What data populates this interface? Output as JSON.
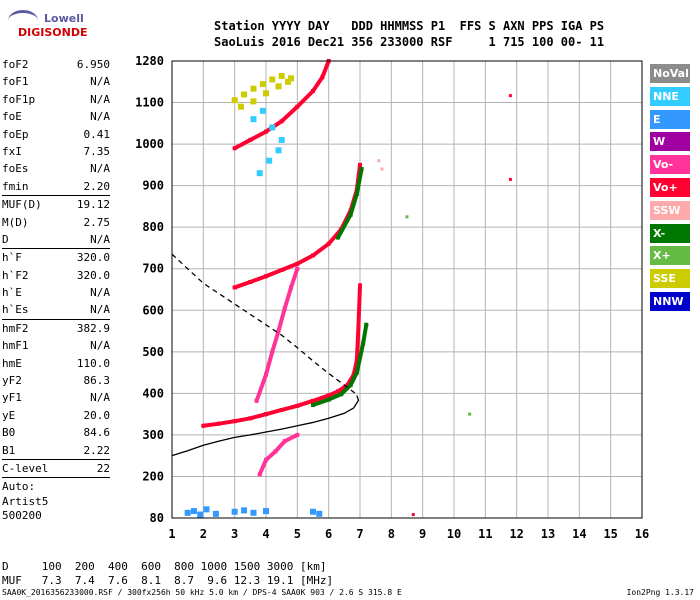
{
  "logo": {
    "line1": "Lowell",
    "line2": "DIGISONDE"
  },
  "header": {
    "line1": "Station YYYY DAY   DDD HHMMSS P1  FFS S AXN PPS IGA PS",
    "line2": "SaoLuis 2016 Dec21 356 233000 RSF     1 715 100 00- 11"
  },
  "params": [
    {
      "label": "foF2",
      "value": "6.950"
    },
    {
      "label": "foF1",
      "value": "N/A"
    },
    {
      "label": "foF1p",
      "value": "N/A"
    },
    {
      "label": "foE",
      "value": "N/A"
    },
    {
      "label": "foEp",
      "value": "0.41"
    },
    {
      "label": "fxI",
      "value": "7.35"
    },
    {
      "label": "foEs",
      "value": "N/A"
    },
    {
      "label": "fmin",
      "value": "2.20"
    },
    {
      "sep": true
    },
    {
      "label": "MUF(D)",
      "value": "19.12"
    },
    {
      "label": "M(D)",
      "value": "2.75"
    },
    {
      "label": "D",
      "value": "N/A"
    },
    {
      "sep": true
    },
    {
      "label": "h`F",
      "value": "320.0"
    },
    {
      "label": "h`F2",
      "value": "320.0"
    },
    {
      "label": "h`E",
      "value": "N/A"
    },
    {
      "label": "h`Es",
      "value": "N/A"
    },
    {
      "sep": true
    },
    {
      "label": "hmF2",
      "value": "382.9"
    },
    {
      "label": "hmF1",
      "value": "N/A"
    },
    {
      "label": "hmE",
      "value": "110.0"
    },
    {
      "label": "yF2",
      "value": "86.3"
    },
    {
      "label": "yF1",
      "value": "N/A"
    },
    {
      "label": "yE",
      "value": "20.0"
    },
    {
      "label": "B0",
      "value": "84.6"
    },
    {
      "label": "B1",
      "value": "2.22"
    },
    {
      "sep": true
    },
    {
      "label": "C-level",
      "value": "22"
    },
    {
      "sep": true
    }
  ],
  "auto": {
    "line1": "Auto:",
    "line2": "Artist5",
    "line3": "500200"
  },
  "legend": [
    {
      "label": "NoVal",
      "color": "#8c8c8c"
    },
    {
      "label": "NNE",
      "color": "#33ccff"
    },
    {
      "label": "E",
      "color": "#3399ff"
    },
    {
      "label": "W",
      "color": "#a000a0"
    },
    {
      "label": "Vo-",
      "color": "#ff3399"
    },
    {
      "label": "Vo+",
      "color": "#ff0033"
    },
    {
      "label": "SSW",
      "color": "#ffaaaa"
    },
    {
      "label": "X-",
      "color": "#007700"
    },
    {
      "label": "X+",
      "color": "#66bb44"
    },
    {
      "label": "SSE",
      "color": "#cccc00"
    },
    {
      "label": "NNW",
      "color": "#0000cc"
    }
  ],
  "muf_table": {
    "line1": "D     100  200  400  600  800 1000 1500 3000 [km]",
    "line2": "MUF   7.3  7.4  7.6  8.1  8.7  9.6 12.3 19.1 [MHz]"
  },
  "footer": {
    "left": "SAA0K_2016356233000.RSF / 300fx256h 50 kHz 5.0 km / DPS-4 SAA0K 903 / 2.6 S 315.8 E",
    "right": "Ion2Png 1.3.17"
  },
  "chart_data": {
    "type": "scatter",
    "x_ticks": [
      "1",
      "2",
      "3",
      "4",
      "5",
      "6",
      "7",
      "8",
      "9",
      "10",
      "11",
      "12",
      "13",
      "14",
      "15",
      "16"
    ],
    "y_ticks": [
      "80",
      "200",
      "300",
      "400",
      "500",
      "600",
      "700",
      "800",
      "900",
      "1000",
      "1100",
      "1280"
    ],
    "xlim": [
      1,
      16
    ],
    "ylim": [
      80,
      1280
    ],
    "grid": true,
    "series": [
      {
        "kind": "trace",
        "color": "#ff0033",
        "points": [
          [
            2.0,
            322
          ],
          [
            2.5,
            327
          ],
          [
            3.0,
            333
          ],
          [
            3.5,
            340
          ],
          [
            4.0,
            350
          ],
          [
            4.5,
            360
          ],
          [
            5.0,
            370
          ],
          [
            5.5,
            382
          ],
          [
            6.0,
            395
          ],
          [
            6.3,
            405
          ],
          [
            6.6,
            420
          ],
          [
            6.8,
            445
          ],
          [
            6.9,
            480
          ],
          [
            6.95,
            560
          ],
          [
            7.0,
            660
          ]
        ]
      },
      {
        "kind": "trace",
        "color": "#007700",
        "points": [
          [
            5.5,
            372
          ],
          [
            6.0,
            385
          ],
          [
            6.4,
            398
          ],
          [
            6.7,
            420
          ],
          [
            6.9,
            450
          ],
          [
            7.1,
            520
          ],
          [
            7.2,
            565
          ]
        ]
      },
      {
        "kind": "trace",
        "color": "#ff0033",
        "points": [
          [
            3.0,
            655
          ],
          [
            3.5,
            668
          ],
          [
            4.0,
            682
          ],
          [
            4.5,
            697
          ],
          [
            5.0,
            712
          ],
          [
            5.5,
            732
          ],
          [
            6.0,
            760
          ],
          [
            6.4,
            795
          ],
          [
            6.7,
            840
          ],
          [
            6.9,
            890
          ],
          [
            7.0,
            950
          ]
        ]
      },
      {
        "kind": "trace",
        "color": "#007700",
        "points": [
          [
            6.3,
            775
          ],
          [
            6.7,
            830
          ],
          [
            6.9,
            880
          ],
          [
            7.05,
            940
          ]
        ]
      },
      {
        "kind": "trace",
        "color": "#ff0033",
        "points": [
          [
            3.0,
            990
          ],
          [
            3.5,
            1010
          ],
          [
            4.0,
            1030
          ],
          [
            4.5,
            1055
          ],
          [
            5.0,
            1090
          ],
          [
            5.5,
            1150
          ],
          [
            5.8,
            1210
          ],
          [
            6.0,
            1280
          ]
        ]
      },
      {
        "kind": "cloud",
        "color": "#cccc00",
        "points": [
          [
            3.0,
            1110
          ],
          [
            3.3,
            1135
          ],
          [
            3.6,
            1160
          ],
          [
            3.9,
            1180
          ],
          [
            4.2,
            1200
          ],
          [
            4.5,
            1215
          ],
          [
            4.8,
            1205
          ],
          [
            3.2,
            1090
          ],
          [
            3.6,
            1105
          ],
          [
            4.0,
            1140
          ],
          [
            4.4,
            1170
          ],
          [
            4.7,
            1190
          ]
        ]
      },
      {
        "kind": "cloud",
        "color": "#33ccff",
        "points": [
          [
            3.6,
            1060
          ],
          [
            3.9,
            1080
          ],
          [
            4.2,
            1040
          ],
          [
            4.5,
            1010
          ],
          [
            3.8,
            930
          ],
          [
            4.1,
            960
          ],
          [
            4.4,
            985
          ]
        ]
      },
      {
        "kind": "trace",
        "color": "#ff3399",
        "points": [
          [
            3.8,
            205
          ],
          [
            4.0,
            240
          ],
          [
            4.3,
            260
          ],
          [
            4.6,
            285
          ],
          [
            5.0,
            300
          ]
        ]
      },
      {
        "kind": "trace",
        "color": "#ff3399",
        "points": [
          [
            3.7,
            382
          ],
          [
            4.0,
            445
          ],
          [
            4.2,
            500
          ],
          [
            4.4,
            550
          ],
          [
            4.6,
            605
          ],
          [
            4.8,
            655
          ],
          [
            5.0,
            700
          ]
        ]
      },
      {
        "kind": "cloud",
        "color": "#3399ff",
        "points": [
          [
            1.5,
            95
          ],
          [
            1.7,
            100
          ],
          [
            1.9,
            90
          ],
          [
            2.1,
            105
          ],
          [
            2.4,
            92
          ],
          [
            3.0,
            98
          ],
          [
            3.3,
            102
          ],
          [
            3.6,
            95
          ],
          [
            4.0,
            100
          ],
          [
            5.5,
            98
          ],
          [
            5.7,
            92
          ]
        ]
      },
      {
        "kind": "dot",
        "color": "#ff0033",
        "points": [
          [
            11.8,
            1130
          ],
          [
            11.8,
            915
          ],
          [
            8.7,
            90
          ]
        ]
      },
      {
        "kind": "dot",
        "color": "#66bb44",
        "points": [
          [
            8.5,
            825
          ],
          [
            10.5,
            350
          ]
        ]
      },
      {
        "kind": "dot",
        "color": "#ffaaaa",
        "points": [
          [
            7.7,
            940
          ],
          [
            7.6,
            960
          ]
        ]
      }
    ],
    "profile_solid": [
      [
        1.0,
        250
      ],
      [
        1.5,
        262
      ],
      [
        2.0,
        275
      ],
      [
        2.5,
        285
      ],
      [
        3.0,
        294
      ],
      [
        3.5,
        300
      ],
      [
        4.0,
        307
      ],
      [
        4.5,
        314
      ],
      [
        5.0,
        322
      ],
      [
        5.5,
        330
      ],
      [
        6.0,
        340
      ],
      [
        6.5,
        352
      ],
      [
        6.8,
        365
      ],
      [
        6.95,
        383
      ],
      [
        6.9,
        395
      ]
    ],
    "profile_dashed": [
      [
        1.0,
        735
      ],
      [
        1.5,
        700
      ],
      [
        2.0,
        665
      ],
      [
        2.5,
        640
      ],
      [
        3.0,
        615
      ],
      [
        3.5,
        590
      ],
      [
        4.0,
        565
      ],
      [
        4.5,
        540
      ],
      [
        5.0,
        510
      ],
      [
        5.5,
        478
      ],
      [
        6.0,
        448
      ],
      [
        6.5,
        420
      ],
      [
        6.9,
        397
      ]
    ]
  }
}
